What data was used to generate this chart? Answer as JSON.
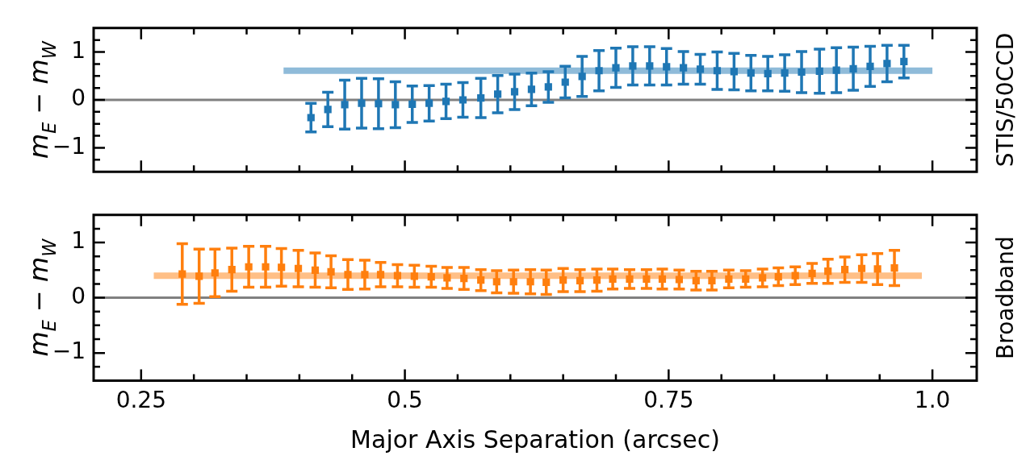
{
  "chart_data": [
    {
      "type": "scatter",
      "ylabel": "m$_{E}$ − m$_{W}$",
      "annotations": [
        "STIS/50CCD"
      ],
      "tick_labels": "y",
      "xlim": [
        0.205,
        1.042
      ],
      "ylim": [
        -1.5,
        1.5
      ],
      "xticks": [
        0.25,
        {
          "value": 0.3,
          "label": null
        },
        {
          "value": 0.35,
          "label": null
        },
        {
          "value": 0.4,
          "label": null
        },
        {
          "value": 0.45,
          "label": null
        },
        0.5,
        {
          "value": 0.55,
          "label": null
        },
        {
          "value": 0.6,
          "label": null
        },
        {
          "value": 0.65,
          "label": null
        },
        {
          "value": 0.7,
          "label": null
        },
        0.75,
        {
          "value": 0.8,
          "label": null
        },
        {
          "value": 0.85,
          "label": null
        },
        {
          "value": 0.9,
          "label": null
        },
        {
          "value": 0.95,
          "label": null
        },
        1
      ],
      "yticks": [
        {
          "value": -1.25,
          "label": null
        },
        -1,
        {
          "value": -0.75,
          "label": null
        },
        {
          "value": -0.5,
          "label": null
        },
        {
          "value": -0.25,
          "label": null
        },
        0,
        {
          "value": 0.25,
          "label": null
        },
        {
          "value": 0.5,
          "label": null
        },
        {
          "value": 0.75,
          "label": null
        },
        1,
        {
          "value": 1.25,
          "label": null
        }
      ],
      "ref_lines": [
        {
          "axis": "y",
          "value": 0,
          "color": "#808080"
        }
      ],
      "series": [
        {
          "type": "line",
          "marker": "none",
          "color": "#8fbbd9",
          "x": [
            0.385,
            1.0
          ],
          "values": [
            0.61,
            0.61
          ]
        },
        {
          "type": "scatter",
          "marker": "square",
          "color": "#1f77b4",
          "x": [
            0.411,
            0.427,
            0.443,
            0.459,
            0.475,
            0.491,
            0.507,
            0.523,
            0.539,
            0.555,
            0.572,
            0.588,
            0.604,
            0.62,
            0.636,
            0.652,
            0.668,
            0.684,
            0.7,
            0.716,
            0.732,
            0.748,
            0.764,
            0.78,
            0.796,
            0.812,
            0.828,
            0.844,
            0.86,
            0.876,
            0.893,
            0.909,
            0.925,
            0.941,
            0.957,
            0.973
          ],
          "values": [
            -0.37,
            -0.2,
            -0.1,
            -0.07,
            -0.08,
            -0.1,
            -0.09,
            -0.07,
            -0.03,
            0.0,
            0.04,
            0.12,
            0.17,
            0.22,
            0.27,
            0.37,
            0.49,
            0.61,
            0.67,
            0.71,
            0.71,
            0.69,
            0.67,
            0.64,
            0.61,
            0.59,
            0.56,
            0.55,
            0.56,
            0.58,
            0.6,
            0.62,
            0.65,
            0.7,
            0.76,
            0.8
          ],
          "errors": [
            0.3,
            0.36,
            0.51,
            0.52,
            0.52,
            0.48,
            0.38,
            0.37,
            0.36,
            0.36,
            0.41,
            0.39,
            0.37,
            0.34,
            0.32,
            0.33,
            0.42,
            0.42,
            0.41,
            0.4,
            0.4,
            0.38,
            0.34,
            0.31,
            0.39,
            0.38,
            0.37,
            0.36,
            0.38,
            0.43,
            0.46,
            0.47,
            0.45,
            0.42,
            0.38,
            0.34
          ]
        }
      ]
    },
    {
      "type": "scatter",
      "ylabel": "m$_{E}$ − m$_{W}$",
      "xlabel": "Major Axis Separation (arcsec)",
      "annotations": [
        "Broadband"
      ],
      "xlim": [
        0.205,
        1.042
      ],
      "ylim": [
        -1.5,
        1.5
      ],
      "xticks": [
        0.25,
        {
          "value": 0.3,
          "label": null
        },
        {
          "value": 0.35,
          "label": null
        },
        {
          "value": 0.4,
          "label": null
        },
        {
          "value": 0.45,
          "label": null
        },
        0.5,
        {
          "value": 0.55,
          "label": null
        },
        {
          "value": 0.6,
          "label": null
        },
        {
          "value": 0.65,
          "label": null
        },
        {
          "value": 0.7,
          "label": null
        },
        0.75,
        {
          "value": 0.8,
          "label": null
        },
        {
          "value": 0.85,
          "label": null
        },
        {
          "value": 0.9,
          "label": null
        },
        {
          "value": 0.95,
          "label": null
        },
        {
          "value": 1.0,
          "label": "1.0"
        }
      ],
      "yticks": [
        {
          "value": -1.25,
          "label": null
        },
        -1,
        {
          "value": -0.75,
          "label": null
        },
        {
          "value": -0.5,
          "label": null
        },
        {
          "value": -0.25,
          "label": null
        },
        0,
        {
          "value": 0.25,
          "label": null
        },
        {
          "value": 0.5,
          "label": null
        },
        {
          "value": 0.75,
          "label": null
        },
        1,
        {
          "value": 1.25,
          "label": null
        }
      ],
      "ref_lines": [
        {
          "axis": "y",
          "value": 0,
          "color": "#808080"
        }
      ],
      "series": [
        {
          "type": "line",
          "marker": "none",
          "color": "#ffbf86",
          "x": [
            0.262,
            0.99
          ],
          "values": [
            0.4,
            0.4
          ]
        },
        {
          "type": "scatter",
          "marker": "square",
          "color": "#ff7f0e",
          "x": [
            0.289,
            0.305,
            0.32,
            0.336,
            0.352,
            0.368,
            0.383,
            0.399,
            0.415,
            0.43,
            0.446,
            0.462,
            0.477,
            0.493,
            0.509,
            0.525,
            0.54,
            0.556,
            0.572,
            0.587,
            0.603,
            0.619,
            0.634,
            0.65,
            0.666,
            0.682,
            0.697,
            0.713,
            0.729,
            0.744,
            0.76,
            0.776,
            0.791,
            0.807,
            0.823,
            0.839,
            0.854,
            0.87,
            0.886,
            0.901,
            0.917,
            0.933,
            0.948,
            0.964
          ],
          "values": [
            0.43,
            0.39,
            0.45,
            0.51,
            0.56,
            0.56,
            0.55,
            0.53,
            0.5,
            0.47,
            0.42,
            0.42,
            0.42,
            0.4,
            0.39,
            0.38,
            0.36,
            0.35,
            0.32,
            0.29,
            0.29,
            0.29,
            0.28,
            0.32,
            0.31,
            0.32,
            0.34,
            0.34,
            0.34,
            0.34,
            0.33,
            0.31,
            0.31,
            0.34,
            0.34,
            0.36,
            0.38,
            0.4,
            0.44,
            0.48,
            0.51,
            0.53,
            0.52,
            0.54
          ],
          "errors": [
            0.55,
            0.49,
            0.43,
            0.39,
            0.37,
            0.37,
            0.34,
            0.33,
            0.31,
            0.29,
            0.27,
            0.26,
            0.22,
            0.2,
            0.2,
            0.19,
            0.19,
            0.2,
            0.19,
            0.2,
            0.21,
            0.22,
            0.22,
            0.21,
            0.2,
            0.2,
            0.18,
            0.17,
            0.17,
            0.18,
            0.17,
            0.17,
            0.17,
            0.16,
            0.15,
            0.16,
            0.16,
            0.16,
            0.18,
            0.22,
            0.23,
            0.25,
            0.28,
            0.32
          ]
        }
      ]
    }
  ]
}
